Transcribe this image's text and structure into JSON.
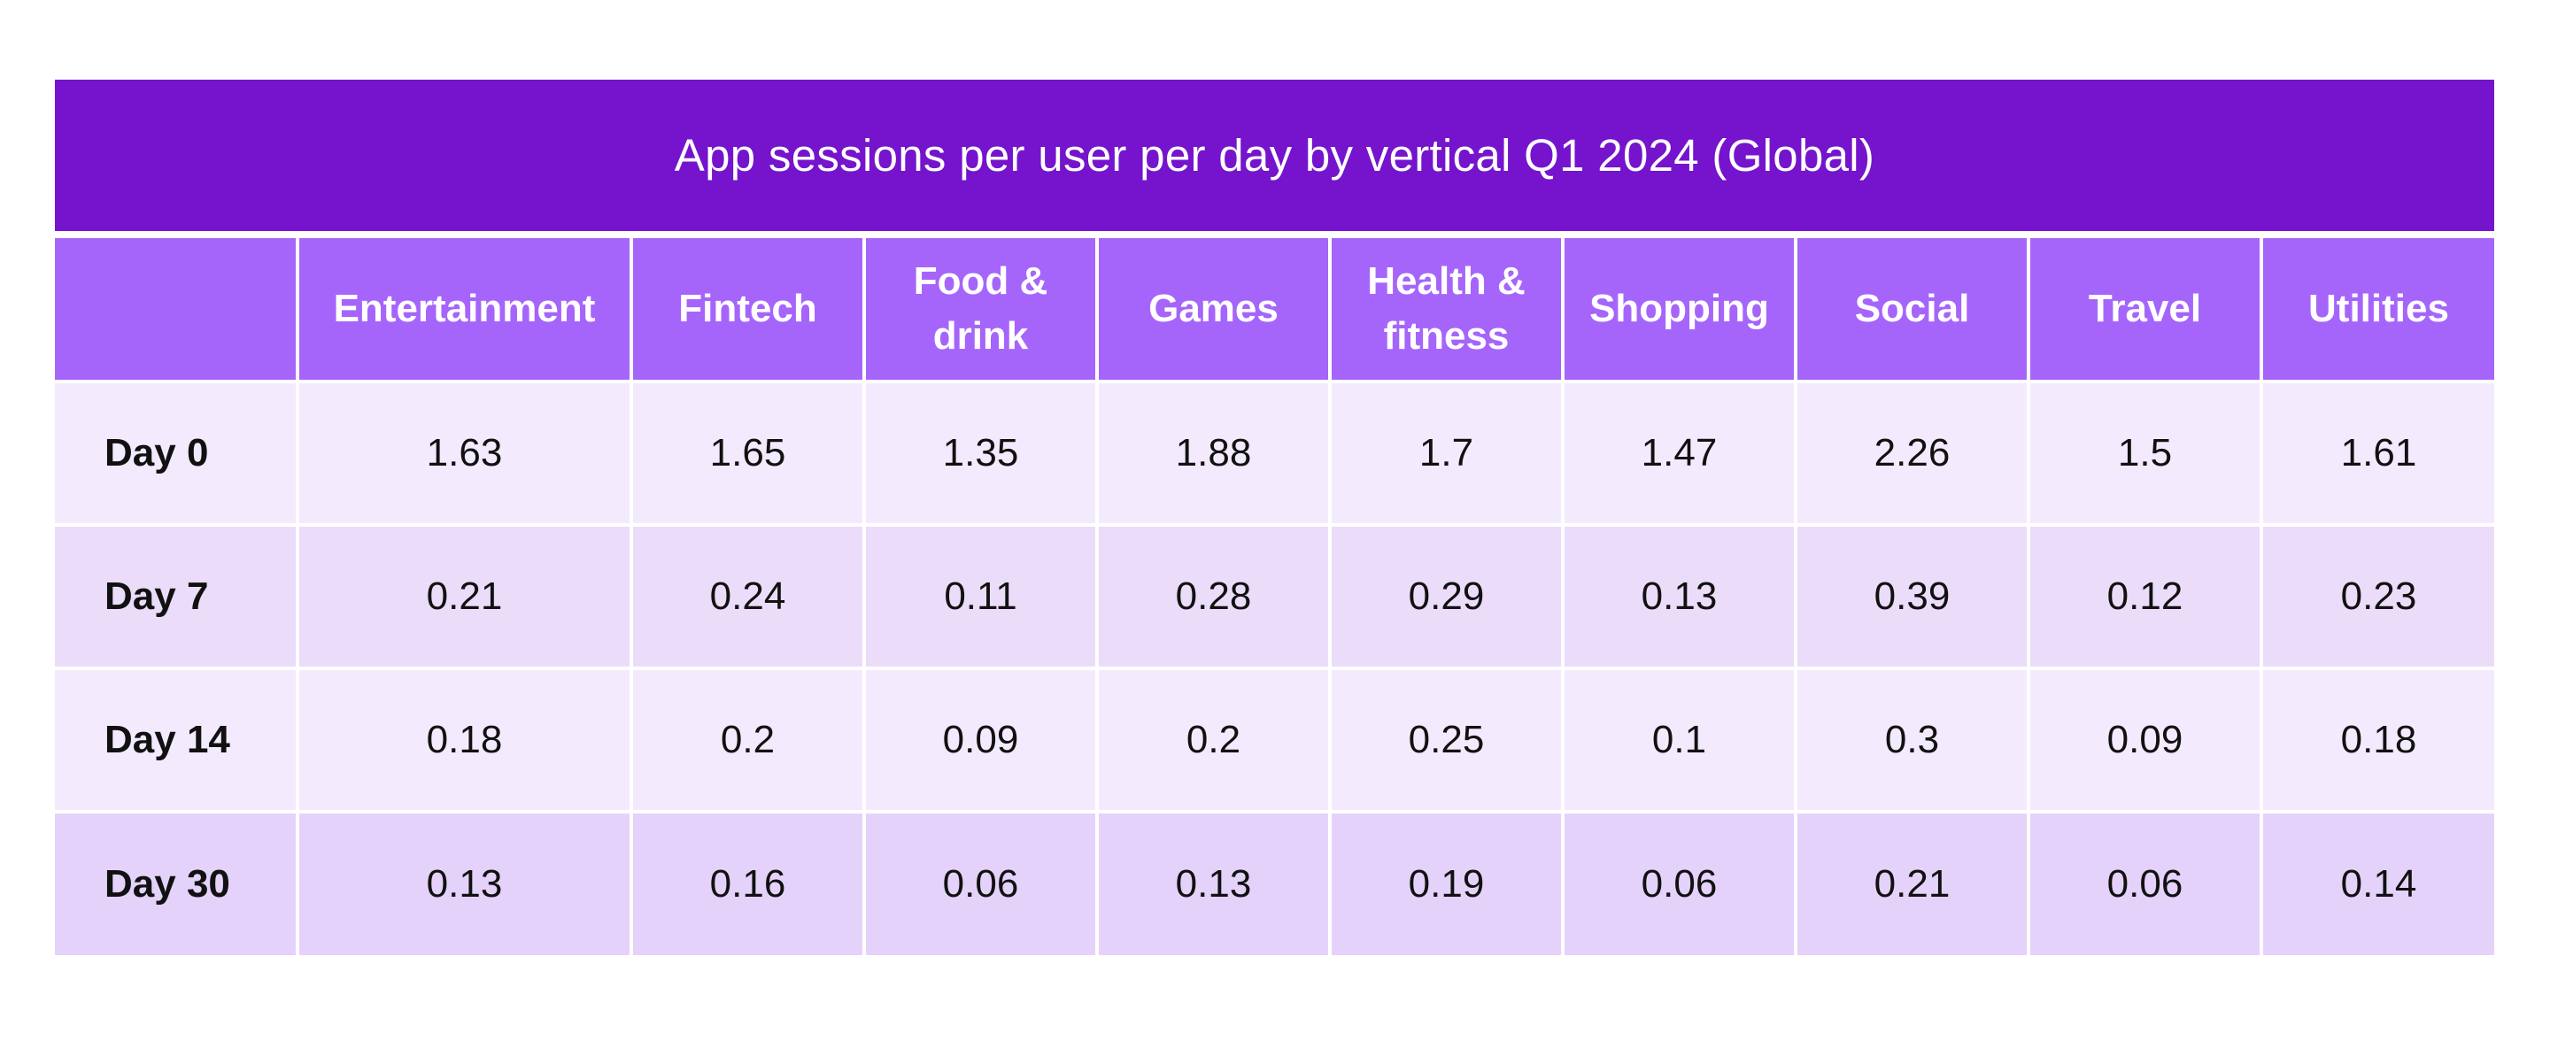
{
  "chart_data": {
    "type": "table",
    "title": "App sessions per user per day by vertical Q1 2024 (Global)",
    "columns": [
      "",
      "Entertainment",
      "Fintech",
      "Food & drink",
      "Games",
      "Health & fitness",
      "Shopping",
      "Social",
      "Travel",
      "Utilities"
    ],
    "rows": [
      {
        "label": "Day 0",
        "values": [
          "1.63",
          "1.65",
          "1.35",
          "1.88",
          "1.7",
          "1.47",
          "2.26",
          "1.5",
          "1.61"
        ]
      },
      {
        "label": "Day 7",
        "values": [
          "0.21",
          "0.24",
          "0.11",
          "0.28",
          "0.29",
          "0.13",
          "0.39",
          "0.12",
          "0.23"
        ]
      },
      {
        "label": "Day 14",
        "values": [
          "0.18",
          "0.2",
          "0.09",
          "0.2",
          "0.25",
          "0.1",
          "0.3",
          "0.09",
          "0.18"
        ]
      },
      {
        "label": "Day 30",
        "values": [
          "0.13",
          "0.16",
          "0.06",
          "0.13",
          "0.19",
          "0.06",
          "0.21",
          "0.06",
          "0.14"
        ]
      }
    ],
    "colors": {
      "title_bg": "#7514cc",
      "header_bg": "#a665fa",
      "row_light": "#f3ebfd",
      "row_mid": "#ebdcf9",
      "row_dark": "#e4d2fb"
    }
  }
}
